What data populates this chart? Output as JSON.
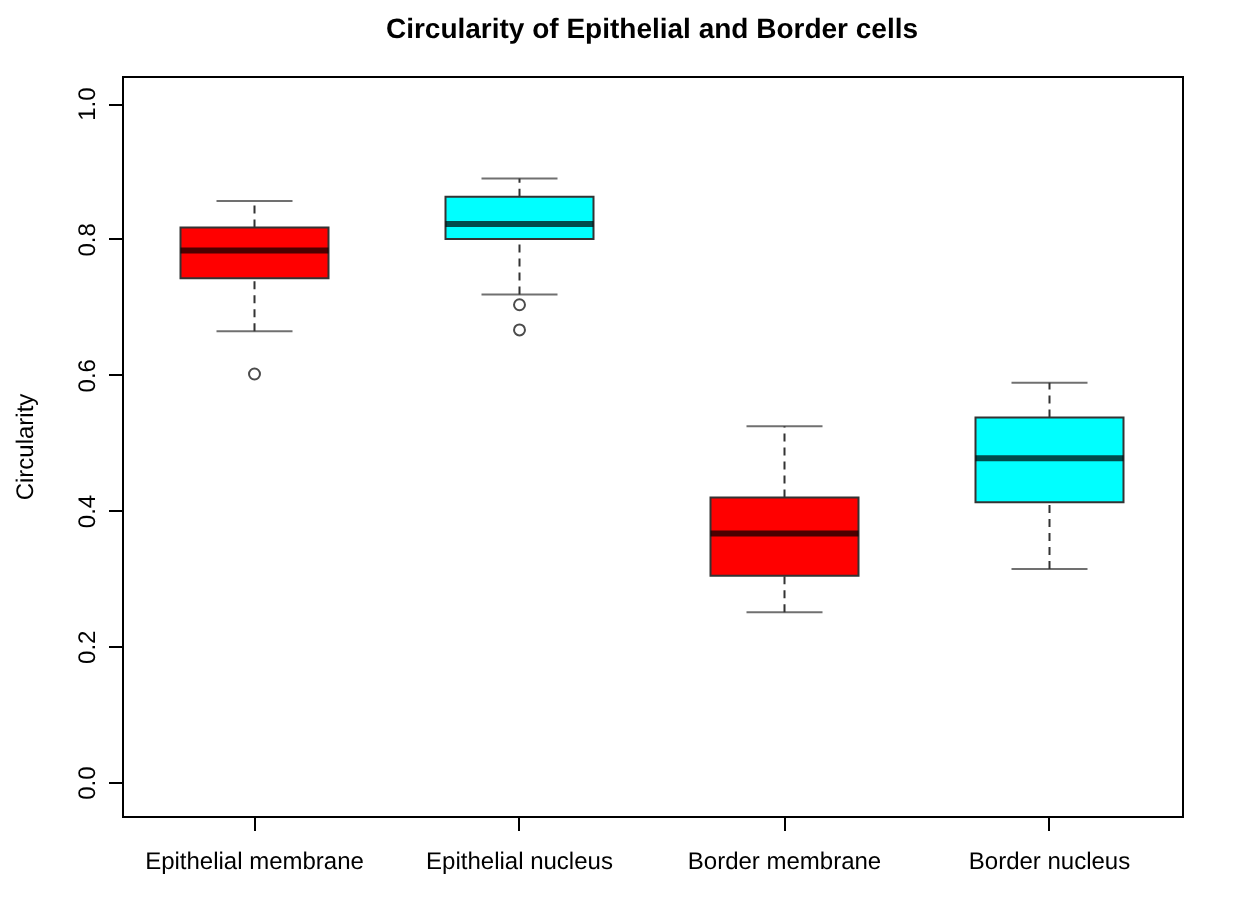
{
  "chart_data": {
    "type": "box",
    "title": "Circularity of Epithelial and Border cells",
    "ylabel": "Circularity",
    "categories": [
      "Epithelial membrane",
      "Epithelial nucleus",
      "Border membrane",
      "Border nucleus"
    ],
    "colors": [
      "#ff0000",
      "#00ffff",
      "#ff0000",
      "#00ffff"
    ],
    "boxes": [
      {
        "low": 0.664,
        "q1": 0.742,
        "median": 0.783,
        "q3": 0.817,
        "high": 0.856,
        "outliers": [
          0.601
        ]
      },
      {
        "low": 0.718,
        "q1": 0.8,
        "median": 0.822,
        "q3": 0.862,
        "high": 0.889,
        "outliers": [
          0.703,
          0.666
        ]
      },
      {
        "low": 0.25,
        "q1": 0.304,
        "median": 0.366,
        "q3": 0.419,
        "high": 0.524
      },
      {
        "low": 0.314,
        "q1": 0.412,
        "median": 0.477,
        "q3": 0.537,
        "high": 0.588
      }
    ],
    "ylim": [
      -0.05,
      1.04
    ],
    "yticks": [
      {
        "value": 0,
        "label": "0.0"
      },
      0.2,
      0.4,
      0.6,
      0.8,
      {
        "value": 1,
        "label": "1.0"
      }
    ],
    "grid": false
  }
}
